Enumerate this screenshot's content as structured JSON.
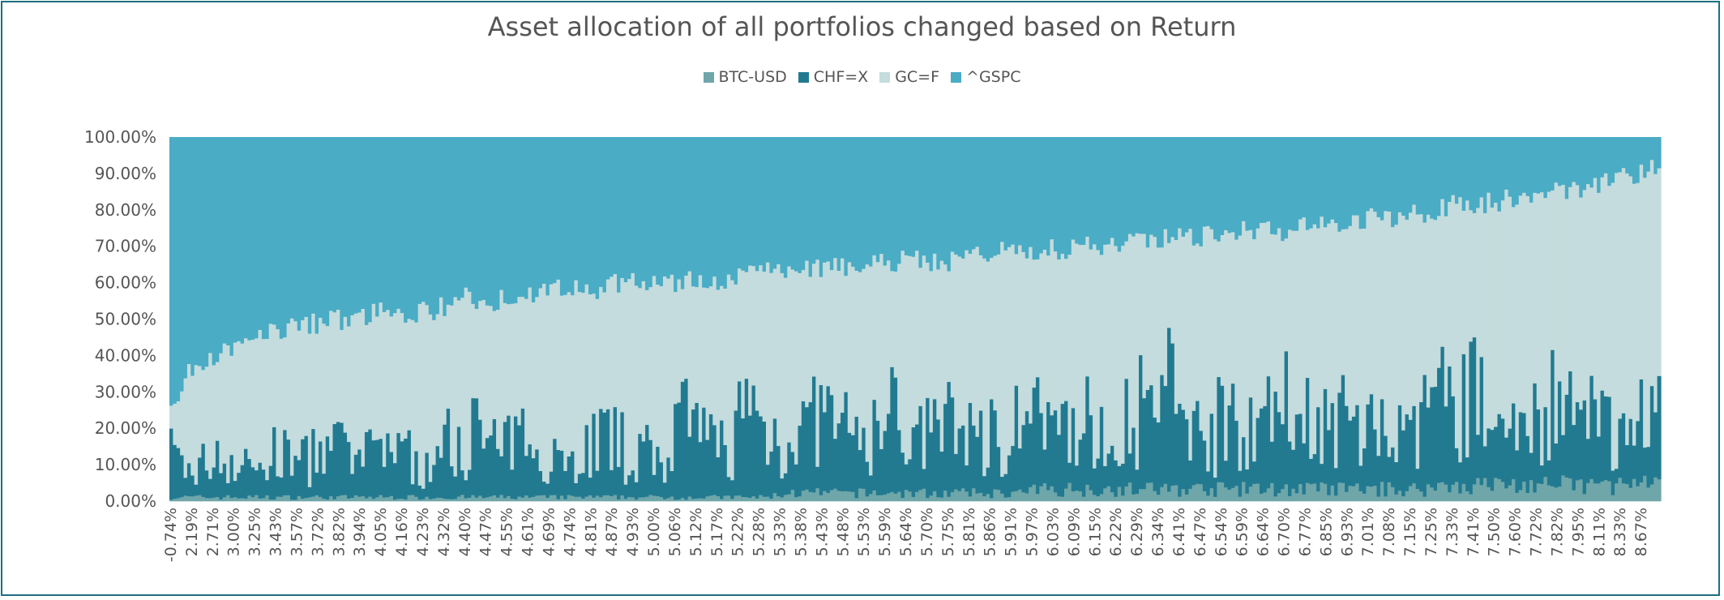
{
  "chart_data": {
    "type": "stacked-bar-100",
    "title": "Asset allocation of all portfolios changed based on Return",
    "legend_position": "top",
    "series": [
      {
        "name": "BTC-USD",
        "color": "#6ea6a9"
      },
      {
        "name": "CHF=X",
        "color": "#227a91"
      },
      {
        "name": "GC=F",
        "color": "#c4dcdd"
      },
      {
        "name": "^GSPC",
        "color": "#4aacc5"
      }
    ],
    "ylim": [
      0,
      100
    ],
    "y_ticks": [
      "0.00%",
      "10.00%",
      "20.00%",
      "30.00%",
      "40.00%",
      "50.00%",
      "60.00%",
      "70.00%",
      "80.00%",
      "90.00%",
      "100.00%"
    ],
    "x_tick_labels": [
      "-0.74%",
      "2.19%",
      "2.71%",
      "3.00%",
      "3.25%",
      "3.43%",
      "3.57%",
      "3.72%",
      "3.82%",
      "3.94%",
      "4.05%",
      "4.16%",
      "4.23%",
      "4.32%",
      "4.40%",
      "4.47%",
      "4.55%",
      "4.61%",
      "4.69%",
      "4.74%",
      "4.81%",
      "4.87%",
      "4.93%",
      "5.00%",
      "5.06%",
      "5.12%",
      "5.17%",
      "5.22%",
      "5.28%",
      "5.33%",
      "5.38%",
      "5.43%",
      "5.48%",
      "5.53%",
      "5.59%",
      "5.64%",
      "5.70%",
      "5.75%",
      "5.81%",
      "5.86%",
      "5.91%",
      "5.97%",
      "6.03%",
      "6.09%",
      "6.15%",
      "6.22%",
      "6.29%",
      "6.34%",
      "6.41%",
      "6.47%",
      "6.54%",
      "6.59%",
      "6.64%",
      "6.70%",
      "6.77%",
      "6.85%",
      "6.93%",
      "7.01%",
      "7.08%",
      "7.15%",
      "7.25%",
      "7.33%",
      "7.41%",
      "7.50%",
      "7.60%",
      "7.72%",
      "7.82%",
      "7.95%",
      "8.11%",
      "8.33%",
      "8.67%"
    ],
    "allocations": [
      {
        "x": "-0.74%",
        "btc": 1,
        "chf": 12,
        "gc": 12,
        "gspc": 75
      },
      {
        "x": "2.19%",
        "btc": 1,
        "chf": 6,
        "gc": 30,
        "gspc": 63
      },
      {
        "x": "2.71%",
        "btc": 1,
        "chf": 12,
        "gc": 27,
        "gspc": 60
      },
      {
        "x": "3.00%",
        "btc": 1,
        "chf": 9,
        "gc": 33,
        "gspc": 57
      },
      {
        "x": "3.25%",
        "btc": 1,
        "chf": 8,
        "gc": 37,
        "gspc": 54
      },
      {
        "x": "3.43%",
        "btc": 1,
        "chf": 12,
        "gc": 34,
        "gspc": 53
      },
      {
        "x": "3.57%",
        "btc": 1,
        "chf": 10,
        "gc": 37,
        "gspc": 52
      },
      {
        "x": "3.72%",
        "btc": 1,
        "chf": 12,
        "gc": 36,
        "gspc": 51
      },
      {
        "x": "3.82%",
        "btc": 1,
        "chf": 13,
        "gc": 36,
        "gspc": 50
      },
      {
        "x": "3.94%",
        "btc": 1,
        "chf": 9,
        "gc": 41,
        "gspc": 49
      },
      {
        "x": "4.05%",
        "btc": 1,
        "chf": 17,
        "gc": 35,
        "gspc": 47
      },
      {
        "x": "4.16%",
        "btc": 1,
        "chf": 12,
        "gc": 38,
        "gspc": 49
      },
      {
        "x": "4.23%",
        "btc": 1,
        "chf": 7,
        "gc": 44,
        "gspc": 48
      },
      {
        "x": "4.32%",
        "btc": 1,
        "chf": 15,
        "gc": 38,
        "gspc": 46
      },
      {
        "x": "4.40%",
        "btc": 1,
        "chf": 20,
        "gc": 35,
        "gspc": 44
      },
      {
        "x": "4.47%",
        "btc": 1,
        "chf": 14,
        "gc": 40,
        "gspc": 45
      },
      {
        "x": "4.55%",
        "btc": 1,
        "chf": 13,
        "gc": 42,
        "gspc": 44
      },
      {
        "x": "4.61%",
        "btc": 1,
        "chf": 18,
        "gc": 38,
        "gspc": 43
      },
      {
        "x": "4.69%",
        "btc": 1,
        "chf": 12,
        "gc": 45,
        "gspc": 42
      },
      {
        "x": "4.74%",
        "btc": 1,
        "chf": 9,
        "gc": 48,
        "gspc": 42
      },
      {
        "x": "4.81%",
        "btc": 1,
        "chf": 17,
        "gc": 40,
        "gspc": 42
      },
      {
        "x": "4.87%",
        "btc": 1,
        "chf": 14,
        "gc": 45,
        "gspc": 40
      },
      {
        "x": "4.93%",
        "btc": 1,
        "chf": 12,
        "gc": 47,
        "gspc": 40
      },
      {
        "x": "5.00%",
        "btc": 1,
        "chf": 11,
        "gc": 47,
        "gspc": 41
      },
      {
        "x": "5.06%",
        "btc": 1,
        "chf": 20,
        "gc": 39,
        "gspc": 40
      },
      {
        "x": "5.12%",
        "btc": 1,
        "chf": 16,
        "gc": 44,
        "gspc": 39
      },
      {
        "x": "5.17%",
        "btc": 1,
        "chf": 14,
        "gc": 45,
        "gspc": 40
      },
      {
        "x": "5.22%",
        "btc": 1,
        "chf": 24,
        "gc": 38,
        "gspc": 37
      },
      {
        "x": "5.28%",
        "btc": 1,
        "chf": 18,
        "gc": 45,
        "gspc": 36
      },
      {
        "x": "5.33%",
        "btc": 2,
        "chf": 15,
        "gc": 45,
        "gspc": 38
      },
      {
        "x": "5.38%",
        "btc": 2,
        "chf": 18,
        "gc": 44,
        "gspc": 36
      },
      {
        "x": "5.43%",
        "btc": 2,
        "chf": 21,
        "gc": 41,
        "gspc": 36
      },
      {
        "x": "5.48%",
        "btc": 2,
        "chf": 14,
        "gc": 48,
        "gspc": 36
      },
      {
        "x": "5.53%",
        "btc": 2,
        "chf": 16,
        "gc": 47,
        "gspc": 35
      },
      {
        "x": "5.59%",
        "btc": 2,
        "chf": 22,
        "gc": 42,
        "gspc": 34
      },
      {
        "x": "5.64%",
        "btc": 2,
        "chf": 13,
        "gc": 51,
        "gspc": 34
      },
      {
        "x": "5.70%",
        "btc": 2,
        "chf": 18,
        "gc": 45,
        "gspc": 35
      },
      {
        "x": "5.75%",
        "btc": 2,
        "chf": 20,
        "gc": 45,
        "gspc": 33
      },
      {
        "x": "5.81%",
        "btc": 2,
        "chf": 15,
        "gc": 50,
        "gspc": 33
      },
      {
        "x": "5.86%",
        "btc": 2,
        "chf": 18,
        "gc": 49,
        "gspc": 31
      },
      {
        "x": "5.91%",
        "btc": 2,
        "chf": 22,
        "gc": 45,
        "gspc": 31
      },
      {
        "x": "5.97%",
        "btc": 3,
        "chf": 18,
        "gc": 48,
        "gspc": 31
      },
      {
        "x": "6.03%",
        "btc": 3,
        "chf": 15,
        "gc": 51,
        "gspc": 31
      },
      {
        "x": "6.09%",
        "btc": 3,
        "chf": 21,
        "gc": 46,
        "gspc": 30
      },
      {
        "x": "6.15%",
        "btc": 3,
        "chf": 12,
        "gc": 55,
        "gspc": 30
      },
      {
        "x": "6.22%",
        "btc": 3,
        "chf": 24,
        "gc": 45,
        "gspc": 28
      },
      {
        "x": "6.29%",
        "btc": 3,
        "chf": 20,
        "gc": 48,
        "gspc": 29
      },
      {
        "x": "6.34%",
        "btc": 3,
        "chf": 27,
        "gc": 42,
        "gspc": 28
      },
      {
        "x": "6.41%",
        "btc": 3,
        "chf": 19,
        "gc": 50,
        "gspc": 28
      },
      {
        "x": "6.47%",
        "btc": 3,
        "chf": 16,
        "gc": 54,
        "gspc": 27
      },
      {
        "x": "6.54%",
        "btc": 3,
        "chf": 24,
        "gc": 47,
        "gspc": 26
      },
      {
        "x": "6.59%",
        "btc": 3,
        "chf": 20,
        "gc": 51,
        "gspc": 26
      },
      {
        "x": "6.64%",
        "btc": 3,
        "chf": 18,
        "gc": 53,
        "gspc": 26
      },
      {
        "x": "6.70%",
        "btc": 3,
        "chf": 26,
        "gc": 46,
        "gspc": 25
      },
      {
        "x": "6.77%",
        "btc": 3,
        "chf": 16,
        "gc": 57,
        "gspc": 24
      },
      {
        "x": "6.85%",
        "btc": 3,
        "chf": 20,
        "gc": 53,
        "gspc": 24
      },
      {
        "x": "6.93%",
        "btc": 3,
        "chf": 15,
        "gc": 59,
        "gspc": 23
      },
      {
        "x": "7.01%",
        "btc": 3,
        "chf": 20,
        "gc": 55,
        "gspc": 22
      },
      {
        "x": "7.08%",
        "btc": 3,
        "chf": 12,
        "gc": 63,
        "gspc": 22
      },
      {
        "x": "7.15%",
        "btc": 3,
        "chf": 20,
        "gc": 56,
        "gspc": 21
      },
      {
        "x": "7.25%",
        "btc": 4,
        "chf": 25,
        "gc": 52,
        "gspc": 19
      },
      {
        "x": "7.33%",
        "btc": 4,
        "chf": 28,
        "gc": 50,
        "gspc": 18
      },
      {
        "x": "7.41%",
        "btc": 4,
        "chf": 16,
        "gc": 62,
        "gspc": 18
      },
      {
        "x": "7.50%",
        "btc": 4,
        "chf": 20,
        "gc": 59,
        "gspc": 17
      },
      {
        "x": "7.60%",
        "btc": 4,
        "chf": 18,
        "gc": 62,
        "gspc": 16
      },
      {
        "x": "7.72%",
        "btc": 4,
        "chf": 22,
        "gc": 59,
        "gspc": 15
      },
      {
        "x": "7.82%",
        "btc": 4,
        "chf": 18,
        "gc": 64,
        "gspc": 14
      },
      {
        "x": "7.95%",
        "btc": 4,
        "chf": 16,
        "gc": 67,
        "gspc": 13
      },
      {
        "x": "8.11%",
        "btc": 4,
        "chf": 15,
        "gc": 69,
        "gspc": 12
      },
      {
        "x": "8.33%",
        "btc": 4,
        "chf": 18,
        "gc": 68,
        "gspc": 10
      },
      {
        "x": "8.67%",
        "btc": 4,
        "chf": 22,
        "gc": 66,
        "gspc": 8
      }
    ]
  }
}
